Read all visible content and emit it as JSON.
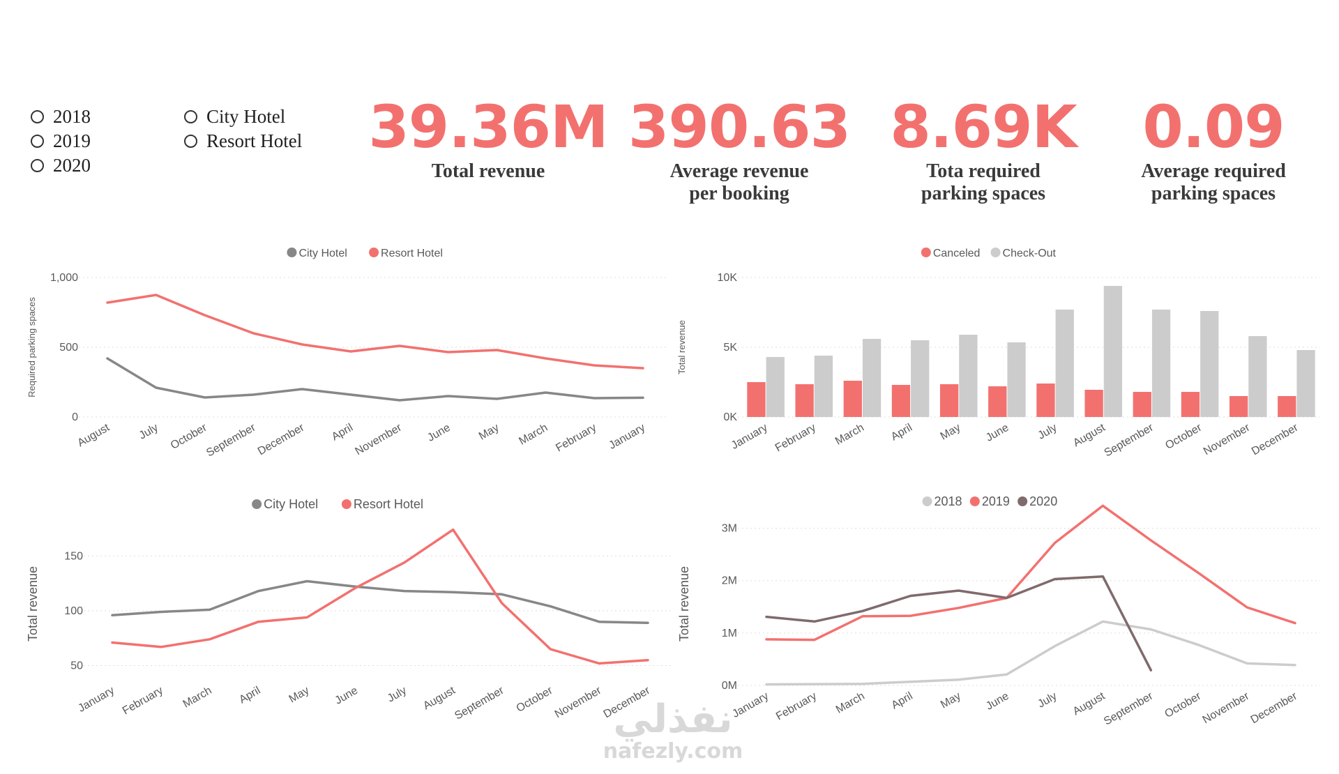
{
  "slicers": {
    "years": [
      "2018",
      "2019",
      "2020"
    ],
    "hotels": [
      "City Hotel",
      "Resort Hotel"
    ]
  },
  "kpis": [
    {
      "value": "39.36M",
      "label": [
        "Total revenue"
      ]
    },
    {
      "value": "390.63",
      "label": [
        "Average revenue",
        "per booking"
      ]
    },
    {
      "value": "8.69K",
      "label": [
        "Tota required",
        "parking spaces"
      ]
    },
    {
      "value": "0.09",
      "label": [
        "Average required",
        "parking spaces"
      ]
    }
  ],
  "colors": {
    "city": "#878787",
    "resort": "#f2716f",
    "canceled": "#f2716f",
    "checkout": "#cccccc",
    "y2018": "#cccccc",
    "y2019": "#f2716f",
    "y2020": "#7f6a6c",
    "grid": "#dddddd",
    "axis_text": "#595959"
  },
  "chart_data": [
    {
      "type": "line",
      "categories": [
        "August",
        "July",
        "October",
        "September",
        "December",
        "April",
        "November",
        "June",
        "May",
        "March",
        "February",
        "January"
      ],
      "ylabel": "Required parking spaces",
      "xlabel": "",
      "ylim": [
        0,
        1000
      ],
      "yticks": [
        "0",
        "500",
        "1,000"
      ],
      "legend": "top-center",
      "series": [
        {
          "name": "City Hotel",
          "values": [
            420,
            210,
            140,
            160,
            200,
            160,
            120,
            150,
            130,
            175,
            135,
            138
          ]
        },
        {
          "name": "Resort Hotel",
          "values": [
            820,
            875,
            730,
            600,
            520,
            470,
            510,
            465,
            480,
            420,
            370,
            350
          ]
        }
      ]
    },
    {
      "type": "bar",
      "categories": [
        "January",
        "February",
        "March",
        "April",
        "May",
        "June",
        "July",
        "August",
        "September",
        "October",
        "November",
        "December"
      ],
      "ylabel": "Total revenue",
      "xlabel": "",
      "ylim": [
        0,
        10000
      ],
      "yticks": [
        "0K",
        "5K",
        "10K"
      ],
      "legend": "top-center",
      "series": [
        {
          "name": "Canceled",
          "values": [
            2500,
            2350,
            2600,
            2300,
            2350,
            2200,
            2400,
            1950,
            1800,
            1800,
            1500,
            1500
          ]
        },
        {
          "name": "Check-Out",
          "values": [
            4300,
            4400,
            5600,
            5500,
            5900,
            5350,
            7700,
            9400,
            7700,
            7600,
            5800,
            4800
          ]
        }
      ]
    },
    {
      "type": "line",
      "categories": [
        "January",
        "February",
        "March",
        "April",
        "May",
        "June",
        "July",
        "August",
        "September",
        "October",
        "November",
        "December"
      ],
      "ylabel": "Total revenue",
      "xlabel": "",
      "ylim": [
        37,
        175
      ],
      "yticks": [
        "50",
        "100",
        "150"
      ],
      "legend": "top-center",
      "series": [
        {
          "name": "City Hotel",
          "values": [
            96,
            99,
            101,
            118,
            127,
            122,
            118,
            117,
            115,
            104,
            90,
            89
          ]
        },
        {
          "name": "Resort Hotel",
          "values": [
            71,
            67,
            74,
            90,
            94,
            121,
            144,
            174,
            107,
            65,
            52,
            55
          ]
        }
      ]
    },
    {
      "type": "line",
      "categories": [
        "January",
        "February",
        "March",
        "April",
        "May",
        "June",
        "July",
        "August",
        "September",
        "October",
        "November",
        "December"
      ],
      "ylabel": "Total revenue",
      "xlabel": "",
      "ylim": [
        0,
        3500000
      ],
      "yticks": [
        "0M",
        "1M",
        "2M",
        "3M"
      ],
      "legend": "top-center",
      "series": [
        {
          "name": "2018",
          "values": [
            null,
            null,
            null,
            null,
            null,
            null,
            750000,
            1220000,
            1070000,
            770000,
            420000,
            390000
          ]
        },
        {
          "name": "2019",
          "values": [
            880000,
            870000,
            1320000,
            1330000,
            1480000,
            1670000,
            2720000,
            3430000,
            2770000,
            2140000,
            1490000,
            1190000
          ]
        },
        {
          "name": "2020",
          "values": [
            1310000,
            1220000,
            1420000,
            1710000,
            1810000,
            1670000,
            2030000,
            2080000,
            290000,
            null,
            null,
            null
          ]
        }
      ],
      "extra_2018_early": [
        20000,
        25000,
        30000,
        70000,
        110000,
        210000
      ]
    }
  ],
  "watermark": {
    "arabic": "نفذلي",
    "latin": "nafezly.com"
  }
}
